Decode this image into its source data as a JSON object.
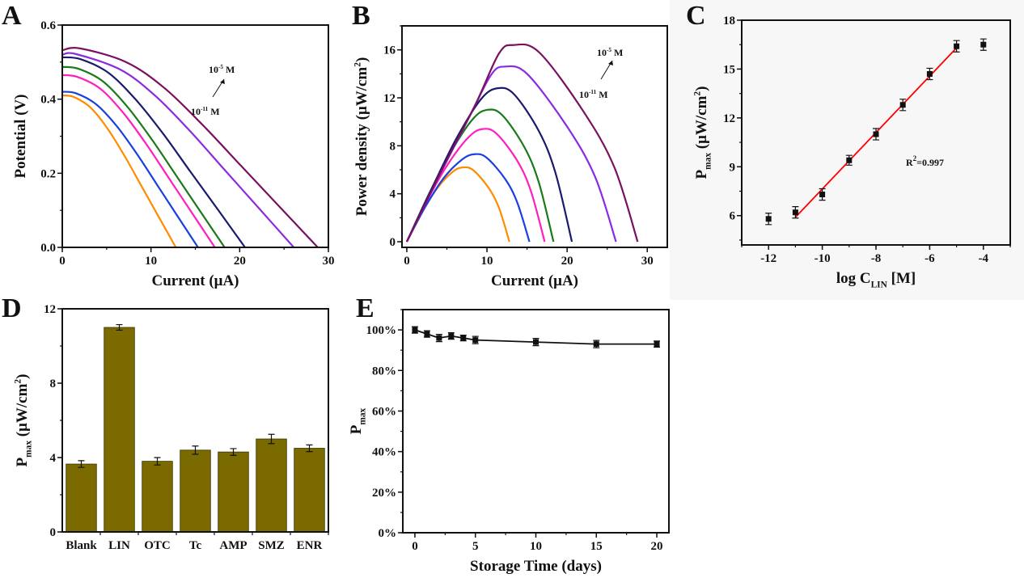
{
  "panel_background_c": "#f7f7f7",
  "chart_data": [
    {
      "panel": "A",
      "type": "line",
      "xlabel": [
        {
          "t": "Current (μA)"
        }
      ],
      "ylabel": [
        {
          "t": "Potential (V)"
        }
      ],
      "xlim": [
        0,
        30
      ],
      "ylim": [
        0,
        0.6
      ],
      "xticks": [
        {
          "v": 0,
          "l": "0"
        },
        {
          "v": 10,
          "l": "10"
        },
        {
          "v": 20,
          "l": "20"
        },
        {
          "v": 30,
          "l": "30"
        }
      ],
      "yticks": [
        {
          "v": 0,
          "l": "0.0"
        },
        {
          "v": 0.2,
          "l": "0.2"
        },
        {
          "v": 0.4,
          "l": "0.4"
        },
        {
          "v": 0.6,
          "l": "0.6"
        }
      ],
      "minor_x": 5,
      "minor_y": 0.1,
      "annotations": {
        "top": [
          {
            "t": "10"
          },
          {
            "t": "-5",
            "s": "sup"
          },
          {
            "t": " M"
          }
        ],
        "bottom": [
          {
            "t": "10"
          },
          {
            "t": "-11",
            "s": "sup"
          },
          {
            "t": " M"
          }
        ]
      },
      "series": [
        {
          "color": "#ff8c00",
          "x": [
            0,
            1.28,
            3.2,
            5.12,
            7.04,
            8.96,
            10.88,
            12.8
          ],
          "y": [
            0.41,
            0.406,
            0.377,
            0.32,
            0.246,
            0.164,
            0.082,
            0
          ]
        },
        {
          "color": "#1a3fe0",
          "x": [
            0,
            1.53,
            3.83,
            6.12,
            8.42,
            10.71,
            13.0,
            15.3
          ],
          "y": [
            0.42,
            0.416,
            0.386,
            0.328,
            0.252,
            0.168,
            0.084,
            0
          ]
        },
        {
          "color": "#ff1fbf",
          "x": [
            0,
            1.72,
            4.3,
            6.88,
            9.46,
            12.04,
            14.62,
            17.2
          ],
          "y": [
            0.465,
            0.46,
            0.428,
            0.363,
            0.279,
            0.186,
            0.093,
            0
          ]
        },
        {
          "color": "#1a7a1a",
          "x": [
            0,
            1.83,
            4.58,
            7.32,
            10.07,
            12.81,
            15.56,
            18.3
          ],
          "y": [
            0.487,
            0.482,
            0.448,
            0.38,
            0.292,
            0.195,
            0.097,
            0
          ]
        },
        {
          "color": "#1a1a6e",
          "x": [
            0,
            2.06,
            5.15,
            8.24,
            11.33,
            14.42,
            17.51,
            20.6
          ],
          "y": [
            0.513,
            0.508,
            0.472,
            0.4,
            0.308,
            0.205,
            0.103,
            0
          ]
        },
        {
          "color": "#8a2be2",
          "x": [
            0,
            1.5,
            6.53,
            10.44,
            14.36,
            18.27,
            22.19,
            26.1
          ],
          "y": [
            0.52,
            0.522,
            0.48,
            0.41,
            0.315,
            0.21,
            0.105,
            0
          ]
        },
        {
          "color": "#7a1060",
          "x": [
            0,
            2.0,
            7.2,
            11.52,
            15.84,
            20.16,
            24.48,
            28.8
          ],
          "y": [
            0.532,
            0.537,
            0.5,
            0.43,
            0.33,
            0.22,
            0.11,
            0
          ]
        }
      ]
    },
    {
      "panel": "B",
      "type": "line",
      "xlabel": [
        {
          "t": "Current (μA)"
        }
      ],
      "ylabel": [
        {
          "t": "Power density (μW/cm"
        },
        {
          "t": "2",
          "s": "sup"
        },
        {
          "t": ")"
        }
      ],
      "xlim": [
        -0.6,
        32.5
      ],
      "ylim": [
        -0.47,
        18
      ],
      "xticks": [
        {
          "v": 0,
          "l": "0"
        },
        {
          "v": 10,
          "l": "10"
        },
        {
          "v": 20,
          "l": "20"
        },
        {
          "v": 30,
          "l": "30"
        }
      ],
      "yticks": [
        {
          "v": 0,
          "l": "0"
        },
        {
          "v": 4,
          "l": "4"
        },
        {
          "v": 8,
          "l": "8"
        },
        {
          "v": 12,
          "l": "12"
        },
        {
          "v": 16,
          "l": "16"
        }
      ],
      "minor_x": 5,
      "minor_y": 2,
      "annotations": {
        "top": [
          {
            "t": "10"
          },
          {
            "t": "-5",
            "s": "sup"
          },
          {
            "t": " M"
          }
        ],
        "bottom": [
          {
            "t": "10"
          },
          {
            "t": "-11",
            "s": "sup"
          },
          {
            "t": " M"
          }
        ]
      },
      "series": [
        {
          "color": "#ff8c00",
          "x": [
            0,
            1.92,
            3.84,
            5.76,
            7.04,
            8.32,
            10.24,
            11.52,
            12.8
          ],
          "y": [
            0,
            2.5,
            4.5,
            5.85,
            6.2,
            5.95,
            4.46,
            2.79,
            0
          ]
        },
        {
          "color": "#1a3fe0",
          "x": [
            0,
            2.3,
            4.59,
            6.89,
            8.42,
            9.95,
            12.24,
            13.77,
            15.3
          ],
          "y": [
            0,
            2.9,
            5.3,
            6.85,
            7.3,
            7.01,
            5.26,
            3.29,
            0
          ]
        },
        {
          "color": "#ff1fbf",
          "x": [
            0,
            2.58,
            5.16,
            7.74,
            9.46,
            11.18,
            13.76,
            15.48,
            17.2
          ],
          "y": [
            0,
            3.5,
            6.5,
            8.74,
            9.4,
            9.02,
            6.77,
            4.23,
            0
          ]
        },
        {
          "color": "#1a7a1a",
          "x": [
            0,
            2.75,
            5.49,
            8.24,
            10.07,
            11.9,
            14.64,
            16.47,
            18.3
          ],
          "y": [
            0,
            3.96,
            7.48,
            10.23,
            11.0,
            10.56,
            7.92,
            4.95,
            0
          ]
        },
        {
          "color": "#1a1a6e",
          "x": [
            0,
            3.09,
            6.18,
            9.27,
            11.33,
            13.39,
            16.48,
            18.54,
            20.6
          ],
          "y": [
            0,
            4.4,
            8.6,
            11.9,
            12.8,
            12.29,
            9.22,
            5.76,
            0
          ]
        },
        {
          "color": "#8a2be2",
          "x": [
            0,
            3.9,
            7.8,
            10.5,
            12.2,
            15,
            20,
            23.5,
            26.1
          ],
          "y": [
            0,
            5.3,
            10.4,
            13.9,
            14.6,
            14.0,
            9.6,
            5.4,
            0
          ]
        },
        {
          "color": "#7a1060",
          "x": [
            0,
            4.3,
            8.6,
            11.5,
            13.3,
            16.5,
            22,
            25.9,
            28.8
          ],
          "y": [
            0,
            5.9,
            11.5,
            15.7,
            16.4,
            15.8,
            10.9,
            6.2,
            0
          ]
        }
      ]
    },
    {
      "panel": "C",
      "type": "scatter",
      "xlabel": [
        {
          "t": "log C"
        },
        {
          "t": "LIN",
          "s": "sub"
        },
        {
          "t": " [M]"
        }
      ],
      "ylabel": [
        {
          "t": "P"
        },
        {
          "t": "max",
          "s": "sub"
        },
        {
          "t": " (μW/cm"
        },
        {
          "t": "2",
          "s": "sup"
        },
        {
          "t": ")"
        }
      ],
      "xlim": [
        -13,
        -3
      ],
      "ylim": [
        4.2,
        18
      ],
      "xticks": [
        {
          "v": -12,
          "l": "-12"
        },
        {
          "v": -10,
          "l": "-10"
        },
        {
          "v": -8,
          "l": "-8"
        },
        {
          "v": -6,
          "l": "-6"
        },
        {
          "v": -4,
          "l": "-4"
        }
      ],
      "yticks": [
        {
          "v": 6,
          "l": "6"
        },
        {
          "v": 9,
          "l": "9"
        },
        {
          "v": 12,
          "l": "12"
        },
        {
          "v": 15,
          "l": "15"
        },
        {
          "v": 18,
          "l": "18"
        }
      ],
      "minor_x": 1,
      "minor_y": 1.5,
      "x": [
        -12,
        -11,
        -10,
        -9,
        -8,
        -7,
        -6,
        -5,
        -4
      ],
      "y": [
        5.8,
        6.2,
        7.3,
        9.4,
        11.0,
        12.8,
        14.7,
        16.4,
        16.5
      ],
      "error": [
        0.35,
        0.35,
        0.35,
        0.3,
        0.35,
        0.35,
        0.35,
        0.35,
        0.35
      ],
      "fit": {
        "color": "#ff0000",
        "x": [
          -11,
          -5
        ],
        "y": [
          5.9,
          16.3
        ],
        "label": [
          {
            "t": "R"
          },
          {
            "t": "2",
            "s": "sup"
          },
          {
            "t": "=0.997"
          }
        ]
      }
    },
    {
      "panel": "D",
      "type": "bar",
      "ylabel": [
        {
          "t": "P"
        },
        {
          "t": "max",
          "s": "sub"
        },
        {
          "t": " (μW/cm"
        },
        {
          "t": "2",
          "s": "sup"
        },
        {
          "t": ")"
        }
      ],
      "ylim": [
        0,
        12
      ],
      "yticks": [
        {
          "v": 0,
          "l": "0"
        },
        {
          "v": 4,
          "l": "4"
        },
        {
          "v": 8,
          "l": "8"
        },
        {
          "v": 12,
          "l": "12"
        }
      ],
      "minor_y": 2,
      "bar_color": "#7a6a00",
      "categories": [
        "Blank",
        "LIN",
        "OTC",
        "Tc",
        "AMP",
        "SMZ",
        "ENR"
      ],
      "values": [
        3.65,
        11.0,
        3.8,
        4.4,
        4.3,
        5.0,
        4.5
      ],
      "error": [
        0.18,
        0.15,
        0.2,
        0.22,
        0.18,
        0.25,
        0.18
      ]
    },
    {
      "panel": "E",
      "type": "line",
      "xlabel": [
        {
          "t": "Storage Time (days)"
        }
      ],
      "ylabel": [
        {
          "t": "P"
        },
        {
          "t": "max",
          "s": "sub"
        }
      ],
      "xlim": [
        -1,
        21
      ],
      "ylim": [
        0,
        110
      ],
      "xticks": [
        {
          "v": 0,
          "l": "0"
        },
        {
          "v": 5,
          "l": "5"
        },
        {
          "v": 10,
          "l": "10"
        },
        {
          "v": 15,
          "l": "15"
        },
        {
          "v": 20,
          "l": "20"
        }
      ],
      "yticks": [
        {
          "v": 0,
          "l": "0%"
        },
        {
          "v": 20,
          "l": "20%"
        },
        {
          "v": 40,
          "l": "40%"
        },
        {
          "v": 60,
          "l": "60%"
        },
        {
          "v": 80,
          "l": "80%"
        },
        {
          "v": 100,
          "l": "100%"
        }
      ],
      "minor_x": 2.5,
      "minor_y": 10,
      "x": [
        0,
        1,
        2,
        3,
        4,
        5,
        10,
        15,
        20
      ],
      "y": [
        100,
        98,
        96,
        97,
        96,
        95,
        94,
        93,
        93
      ],
      "error": [
        1.6,
        1.6,
        1.8,
        1.6,
        1.4,
        1.8,
        1.8,
        1.8,
        1.5
      ]
    }
  ],
  "panel_letters": [
    "A",
    "B",
    "C",
    "D",
    "E"
  ]
}
